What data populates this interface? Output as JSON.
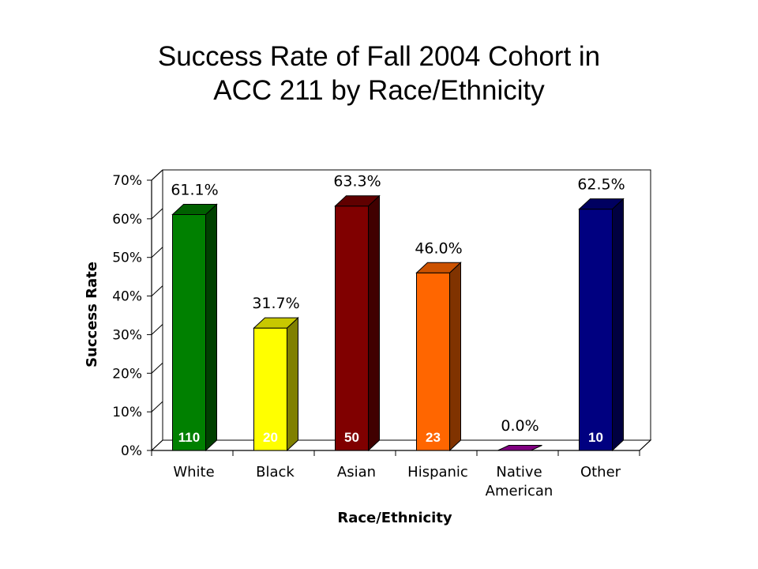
{
  "chart_data": {
    "type": "bar",
    "title_lines": [
      "Success Rate of Fall 2004 Cohort in",
      "ACC 211 by Race/Ethnicity"
    ],
    "xlabel": "Race/Ethnicity",
    "ylabel": "Success Rate",
    "ylim": [
      0,
      70
    ],
    "yticks": [
      "0%",
      "10%",
      "20%",
      "30%",
      "40%",
      "50%",
      "60%",
      "70%"
    ],
    "categories": [
      [
        "White"
      ],
      [
        "Black"
      ],
      [
        "Asian"
      ],
      [
        "Hispanic"
      ],
      [
        "Native",
        "American"
      ],
      [
        "Other"
      ]
    ],
    "values": [
      61.1,
      31.7,
      63.3,
      46.0,
      0.0,
      62.5
    ],
    "value_labels": [
      "61.1%",
      "31.7%",
      "63.3%",
      "46.0%",
      "0.0%",
      "62.5%"
    ],
    "counts": [
      "110",
      "20",
      "50",
      "23",
      "",
      "10"
    ],
    "colors": [
      {
        "front": "#008000",
        "side": "#004000",
        "top": "#006000"
      },
      {
        "front": "#ffff00",
        "side": "#808000",
        "top": "#c8c800"
      },
      {
        "front": "#800000",
        "side": "#400000",
        "top": "#600000"
      },
      {
        "front": "#ff6600",
        "side": "#803300",
        "top": "#cc5200"
      },
      {
        "front": "#800080",
        "side": "#400040",
        "top": "#600060"
      },
      {
        "front": "#000080",
        "side": "#000040",
        "top": "#000060"
      }
    ],
    "grid": false,
    "legend": "none"
  }
}
